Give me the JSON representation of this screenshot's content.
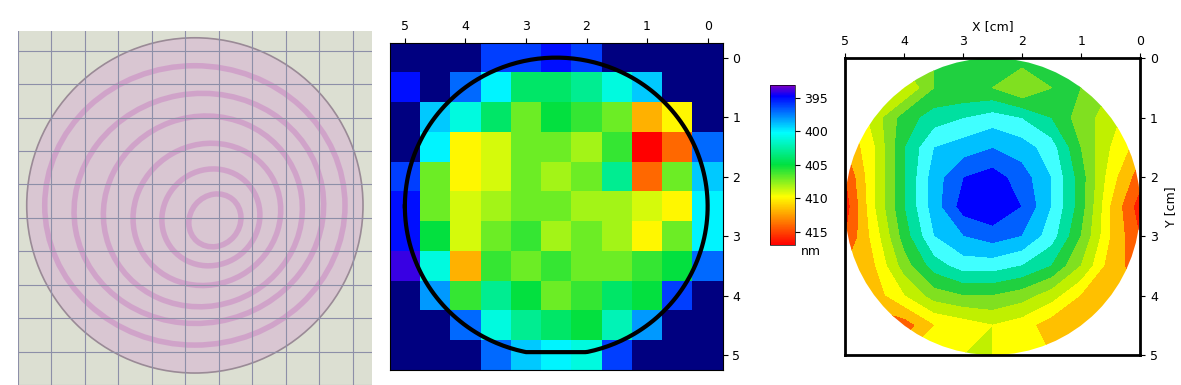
{
  "chart_data": [
    {
      "type": "heatmap",
      "x": [
        5,
        4.5,
        4,
        3.5,
        3,
        2.5,
        2,
        1.5,
        1,
        0.5,
        0
      ],
      "y": [
        0,
        0.5,
        1,
        1.5,
        2,
        2.5,
        3,
        3.5,
        4,
        4.5,
        5
      ],
      "cells": [
        [
          null,
          null,
          null,
          396,
          396,
          395,
          396,
          null,
          null,
          null,
          null
        ],
        [
          395,
          null,
          397,
          400,
          404,
          404,
          403,
          401,
          399,
          null,
          null
        ],
        [
          null,
          399,
          401,
          404,
          407,
          405,
          406,
          407,
          412,
          410,
          null
        ],
        [
          null,
          400,
          410,
          409,
          407,
          407,
          408,
          406,
          417,
          414,
          397
        ],
        [
          396,
          407,
          410,
          409,
          407,
          408,
          407,
          403,
          414,
          407,
          399
        ],
        [
          395,
          407,
          409,
          408,
          407,
          407,
          408,
          408,
          409,
          410,
          400
        ],
        [
          395,
          405,
          409,
          407,
          406,
          408,
          407,
          408,
          410,
          407,
          400
        ],
        [
          394,
          401,
          412,
          406,
          407,
          406,
          407,
          407,
          406,
          405,
          397
        ],
        [
          null,
          398,
          406,
          403,
          405,
          407,
          406,
          404,
          405,
          396,
          null
        ],
        [
          null,
          null,
          397,
          401,
          403,
          404,
          405,
          402,
          398,
          null,
          null
        ],
        [
          null,
          null,
          null,
          397,
          399,
          400,
          401,
          396,
          null,
          null,
          null
        ]
      ],
      "xlim": [
        5.25,
        -0.25
      ],
      "ylim": [
        5.25,
        -0.25
      ],
      "xticks": [
        5,
        4,
        3,
        2,
        1,
        0
      ],
      "yticks": [
        0,
        1,
        2,
        3,
        4,
        5
      ],
      "colorbar": {
        "range": [
          393,
          417
        ],
        "ticks": [
          395,
          400,
          405,
          410,
          415
        ],
        "label": "nm"
      }
    },
    {
      "type": "contour",
      "x_label": "X [cm]",
      "y_label": "Y [cm]",
      "x": [
        0,
        0.5,
        1,
        1.5,
        2,
        2.5,
        3,
        3.5,
        4,
        4.5,
        5
      ],
      "y": [
        0,
        0.5,
        1,
        1.5,
        2,
        2.5,
        3,
        3.5,
        4,
        4.5,
        5
      ],
      "z": [
        [
          410,
          409,
          407,
          406,
          405,
          406,
          406,
          406,
          407,
          409,
          411
        ],
        [
          411,
          408,
          406,
          406,
          408,
          406,
          406,
          406,
          410,
          411,
          412
        ],
        [
          412,
          409,
          407,
          404,
          402,
          401,
          402,
          403,
          405,
          409,
          413
        ],
        [
          413,
          410,
          406,
          401,
          399,
          398,
          399,
          400,
          404,
          410,
          414
        ],
        [
          415,
          411,
          405,
          400,
          397,
          395,
          396,
          399,
          404,
          410,
          416
        ],
        [
          417,
          412,
          405,
          400,
          396,
          394,
          395,
          399,
          404,
          410,
          417
        ],
        [
          416,
          412,
          406,
          401,
          398,
          397,
          398,
          400,
          405,
          411,
          416
        ],
        [
          415,
          413,
          408,
          404,
          402,
          401,
          401,
          403,
          407,
          412,
          414
        ],
        [
          414,
          414,
          412,
          409,
          407,
          406,
          406,
          407,
          410,
          413,
          414
        ],
        [
          412,
          413,
          414,
          413,
          411,
          410,
          411,
          412,
          415,
          415,
          413
        ],
        [
          410,
          411,
          412,
          412,
          411,
          410,
          410,
          411,
          412,
          412,
          411
        ]
      ],
      "levels": [
        392,
        396,
        398,
        400,
        402,
        404,
        406,
        408,
        410,
        412,
        414,
        416,
        418
      ],
      "colors": [
        "#0000ff",
        "#0060ff",
        "#00c0ff",
        "#40ffff",
        "#00e0a0",
        "#20d040",
        "#80e020",
        "#c0f000",
        "#ffff00",
        "#ffc000",
        "#ff6000",
        "#ff2000"
      ],
      "xlim": [
        5,
        0
      ],
      "ylim": [
        5,
        0
      ],
      "xticks": [
        5,
        4,
        3,
        2,
        1,
        0
      ],
      "yticks": [
        0,
        1,
        2,
        3,
        4,
        5
      ]
    }
  ]
}
